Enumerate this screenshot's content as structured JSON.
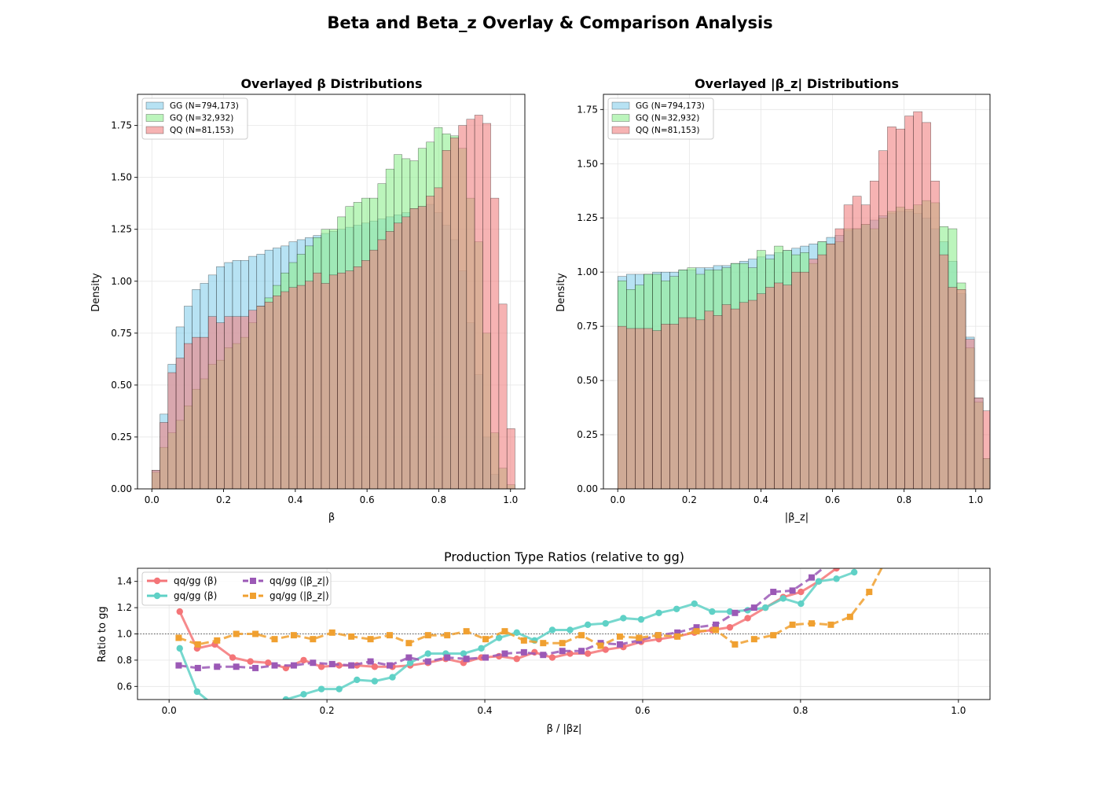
{
  "figure": {
    "suptitle": "Beta and Beta_z Overlay & Comparison Analysis"
  },
  "colors": {
    "gg": "#87ceeb",
    "gq": "#90ee90",
    "qq": "#f08080",
    "qq_gg_beta": "#f47578",
    "gq_gg_beta": "#5fd1c6",
    "qq_gg_betaz": "#9b59b6",
    "gq_gg_betaz": "#f0a030"
  },
  "chart_data": [
    {
      "type": "bar",
      "title": "Overlayed β Distributions",
      "xlabel": "β",
      "ylabel": "Density",
      "xlim": [
        -0.04,
        1.04
      ],
      "ylim": [
        0,
        1.9
      ],
      "xticks": [
        "0.0",
        "0.2",
        "0.4",
        "0.6",
        "0.8",
        "1.0"
      ],
      "yticks": [
        "0.00",
        "0.25",
        "0.50",
        "0.75",
        "1.00",
        "1.25",
        "1.50",
        "1.75"
      ],
      "grid": true,
      "legend_position": "top-left",
      "bin_start": 0.0,
      "bin_width": 0.0225,
      "series": [
        {
          "name": "GG (N=794,173)",
          "key": "gg",
          "values": [
            0.09,
            0.36,
            0.6,
            0.78,
            0.88,
            0.96,
            0.99,
            1.03,
            1.07,
            1.09,
            1.1,
            1.1,
            1.12,
            1.13,
            1.15,
            1.16,
            1.17,
            1.19,
            1.2,
            1.21,
            1.22,
            1.23,
            1.24,
            1.25,
            1.26,
            1.27,
            1.28,
            1.29,
            1.3,
            1.31,
            1.32,
            1.33,
            1.35,
            1.36,
            1.37,
            1.33,
            1.27,
            1.2,
            1.05,
            0.8,
            0.55,
            0.25,
            0.07,
            0.0,
            0.0
          ]
        },
        {
          "name": "GQ (N=32,932)",
          "key": "gq",
          "values": [
            0.08,
            0.2,
            0.27,
            0.33,
            0.4,
            0.48,
            0.53,
            0.6,
            0.62,
            0.68,
            0.7,
            0.73,
            0.8,
            0.88,
            0.92,
            0.98,
            1.04,
            1.09,
            1.13,
            1.17,
            1.21,
            1.25,
            1.25,
            1.31,
            1.36,
            1.38,
            1.4,
            1.4,
            1.47,
            1.54,
            1.61,
            1.59,
            1.58,
            1.64,
            1.67,
            1.74,
            1.71,
            1.7,
            1.64,
            1.4,
            1.19,
            0.75,
            0.27,
            0.1,
            0.02
          ]
        },
        {
          "name": "QQ (N=81,153)",
          "key": "qq",
          "values": [
            0.09,
            0.32,
            0.56,
            0.63,
            0.7,
            0.73,
            0.73,
            0.83,
            0.8,
            0.83,
            0.83,
            0.83,
            0.86,
            0.88,
            0.9,
            0.93,
            0.95,
            0.97,
            0.98,
            1.0,
            1.04,
            0.99,
            1.03,
            1.04,
            1.05,
            1.07,
            1.1,
            1.15,
            1.2,
            1.24,
            1.28,
            1.31,
            1.35,
            1.36,
            1.41,
            1.45,
            1.63,
            1.69,
            1.75,
            1.78,
            1.8,
            1.76,
            1.4,
            0.89,
            0.29
          ]
        }
      ]
    },
    {
      "type": "bar",
      "title": "Overlayed |β_z| Distributions",
      "xlabel": "|β_z|",
      "ylabel": "Density",
      "xlim": [
        -0.04,
        1.04
      ],
      "ylim": [
        0,
        1.82
      ],
      "xticks": [
        "0.0",
        "0.2",
        "0.4",
        "0.6",
        "0.8",
        "1.0"
      ],
      "yticks": [
        "0.00",
        "0.25",
        "0.50",
        "0.75",
        "1.00",
        "1.25",
        "1.50",
        "1.75"
      ],
      "grid": true,
      "legend_position": "top-left",
      "bin_start": 0.0,
      "bin_width": 0.0243,
      "series": [
        {
          "name": "GG (N=794,173)",
          "key": "gg",
          "values": [
            0.98,
            0.99,
            0.99,
            0.99,
            1.0,
            1.0,
            1.0,
            1.01,
            1.01,
            1.02,
            1.02,
            1.03,
            1.03,
            1.04,
            1.05,
            1.06,
            1.07,
            1.08,
            1.09,
            1.1,
            1.11,
            1.12,
            1.13,
            1.14,
            1.16,
            1.17,
            1.19,
            1.2,
            1.22,
            1.24,
            1.26,
            1.27,
            1.28,
            1.28,
            1.27,
            1.25,
            1.2,
            1.14,
            1.05,
            0.9,
            0.7,
            0.42,
            0.14,
            0.03,
            0.0
          ]
        },
        {
          "name": "GQ (N=32,932)",
          "key": "gq",
          "values": [
            0.96,
            0.92,
            0.94,
            0.99,
            0.99,
            0.96,
            0.98,
            1.01,
            1.02,
            0.99,
            1.01,
            1.01,
            1.02,
            1.04,
            1.04,
            1.02,
            1.1,
            1.06,
            1.12,
            1.1,
            1.08,
            1.09,
            1.04,
            1.14,
            1.13,
            1.14,
            1.2,
            1.2,
            1.22,
            1.2,
            1.25,
            1.28,
            1.3,
            1.29,
            1.31,
            1.33,
            1.32,
            1.21,
            1.2,
            0.95,
            0.65,
            0.4,
            0.14,
            0.04,
            0.0
          ]
        },
        {
          "name": "QQ (N=81,153)",
          "key": "qq",
          "values": [
            0.75,
            0.74,
            0.74,
            0.74,
            0.73,
            0.76,
            0.76,
            0.79,
            0.79,
            0.78,
            0.82,
            0.8,
            0.85,
            0.83,
            0.86,
            0.87,
            0.9,
            0.93,
            0.95,
            0.94,
            1.0,
            1.0,
            1.06,
            1.08,
            1.13,
            1.2,
            1.31,
            1.35,
            1.31,
            1.42,
            1.56,
            1.67,
            1.66,
            1.72,
            1.74,
            1.69,
            1.42,
            1.08,
            0.93,
            0.92,
            0.69,
            0.42,
            0.36,
            0.04,
            0.035
          ]
        }
      ]
    },
    {
      "type": "line",
      "title": "Production Type Ratios (relative to gg)",
      "xlabel": "β / |βz|",
      "ylabel": "Ratio to gg",
      "xlim": [
        -0.04,
        1.04
      ],
      "ylim": [
        0.5,
        1.5
      ],
      "xticks": [
        "0.0",
        "0.2",
        "0.4",
        "0.6",
        "0.8",
        "1.0"
      ],
      "yticks": [
        "0.6",
        "0.8",
        "1.0",
        "1.2",
        "1.4"
      ],
      "reference_line": 1.0,
      "grid": true,
      "legend_position": "top-left",
      "series": [
        {
          "name": "qq/gg (β)",
          "key": "qq_gg_beta",
          "marker": "circle",
          "dash": "solid",
          "x": [
            0.0135,
            0.0355,
            0.058,
            0.0805,
            0.103,
            0.1255,
            0.148,
            0.1705,
            0.193,
            0.2155,
            0.238,
            0.2605,
            0.283,
            0.3055,
            0.328,
            0.3505,
            0.373,
            0.3955,
            0.418,
            0.4405,
            0.463,
            0.4855,
            0.508,
            0.5305,
            0.553,
            0.5755,
            0.598,
            0.6205,
            0.643,
            0.6655,
            0.688,
            0.7105,
            0.733,
            0.7555,
            0.778,
            0.8005,
            0.823,
            0.8455,
            0.868
          ],
          "y": [
            1.17,
            0.89,
            0.92,
            0.82,
            0.79,
            0.78,
            0.74,
            0.8,
            0.75,
            0.76,
            0.76,
            0.75,
            0.75,
            0.76,
            0.78,
            0.81,
            0.78,
            0.82,
            0.83,
            0.81,
            0.86,
            0.82,
            0.85,
            0.85,
            0.88,
            0.9,
            0.94,
            0.96,
            0.98,
            1.01,
            1.03,
            1.05,
            1.12,
            1.2,
            1.28,
            1.32,
            1.4,
            1.5,
            1.6
          ]
        },
        {
          "name": "gq/gg (β)",
          "key": "gq_gg_beta",
          "marker": "circle",
          "dash": "solid",
          "x": [
            0.0135,
            0.0355,
            0.058,
            0.0805,
            0.103,
            0.1255,
            0.148,
            0.1705,
            0.193,
            0.2155,
            0.238,
            0.2605,
            0.283,
            0.3055,
            0.328,
            0.3505,
            0.373,
            0.3955,
            0.418,
            0.4405,
            0.463,
            0.4855,
            0.508,
            0.5305,
            0.553,
            0.5755,
            0.598,
            0.6205,
            0.643,
            0.6655,
            0.688,
            0.7105,
            0.733,
            0.7555,
            0.778,
            0.8005,
            0.823,
            0.8455,
            0.868
          ],
          "y": [
            0.89,
            0.56,
            0.45,
            0.42,
            0.42,
            0.45,
            0.5,
            0.54,
            0.58,
            0.58,
            0.65,
            0.64,
            0.67,
            0.78,
            0.85,
            0.85,
            0.85,
            0.89,
            0.97,
            1.01,
            0.95,
            1.03,
            1.03,
            1.07,
            1.08,
            1.12,
            1.11,
            1.16,
            1.19,
            1.23,
            1.17,
            1.17,
            1.18,
            1.2,
            1.27,
            1.23,
            1.4,
            1.42,
            1.47
          ]
        },
        {
          "name": "qq/gg (|β_z|)",
          "key": "qq_gg_betaz",
          "marker": "square",
          "dash": "dashed",
          "x": [
            0.0122,
            0.0365,
            0.0608,
            0.0851,
            0.1094,
            0.1337,
            0.158,
            0.1823,
            0.2066,
            0.2309,
            0.2552,
            0.2795,
            0.3038,
            0.3281,
            0.3524,
            0.3767,
            0.401,
            0.4253,
            0.4496,
            0.4739,
            0.4982,
            0.5225,
            0.5468,
            0.5711,
            0.5954,
            0.6197,
            0.644,
            0.6683,
            0.6926,
            0.7169,
            0.7412,
            0.7655,
            0.7898,
            0.8141,
            0.8384
          ],
          "y": [
            0.76,
            0.74,
            0.75,
            0.75,
            0.74,
            0.76,
            0.76,
            0.78,
            0.77,
            0.76,
            0.79,
            0.76,
            0.82,
            0.79,
            0.82,
            0.81,
            0.82,
            0.85,
            0.86,
            0.84,
            0.87,
            0.87,
            0.93,
            0.92,
            0.95,
            0.99,
            1.01,
            1.05,
            1.07,
            1.16,
            1.2,
            1.32,
            1.33,
            1.43,
            1.55
          ]
        },
        {
          "name": "gq/gg (|β_z|)",
          "key": "gq_gg_betaz",
          "marker": "square",
          "dash": "dashed",
          "x": [
            0.0122,
            0.0365,
            0.0608,
            0.0851,
            0.1094,
            0.1337,
            0.158,
            0.1823,
            0.2066,
            0.2309,
            0.2552,
            0.2795,
            0.3038,
            0.3281,
            0.3524,
            0.3767,
            0.401,
            0.4253,
            0.4496,
            0.4739,
            0.4982,
            0.5225,
            0.5468,
            0.5711,
            0.5954,
            0.6197,
            0.644,
            0.6683,
            0.6926,
            0.7169,
            0.7412,
            0.7655,
            0.7898,
            0.8141,
            0.8384,
            0.8627,
            0.887,
            0.9113
          ],
          "y": [
            0.97,
            0.92,
            0.95,
            1.0,
            1.0,
            0.96,
            0.99,
            0.96,
            1.01,
            0.98,
            0.96,
            0.99,
            0.93,
            0.99,
            0.99,
            1.02,
            0.96,
            1.02,
            0.95,
            0.93,
            0.93,
            0.99,
            0.91,
            0.98,
            0.97,
            0.99,
            0.98,
            1.02,
            1.03,
            0.92,
            0.96,
            0.99,
            1.07,
            1.08,
            1.07,
            1.13,
            1.32,
            1.6
          ]
        }
      ]
    }
  ]
}
